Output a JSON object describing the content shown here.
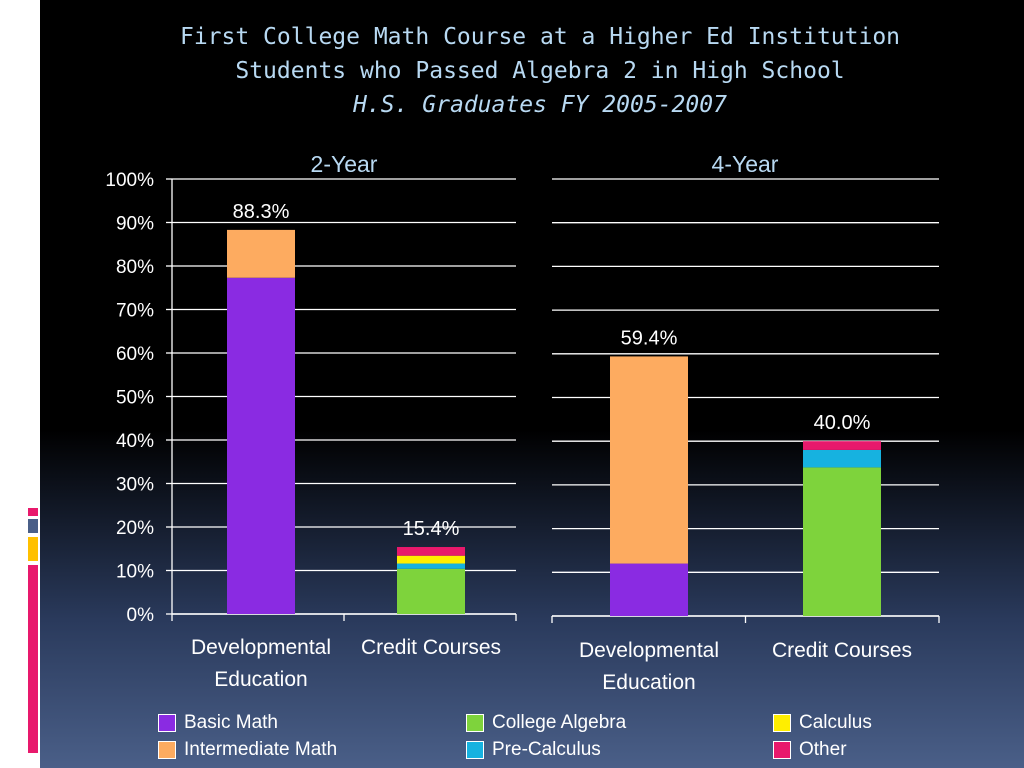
{
  "title": {
    "line1": "First College Math Course at a Higher Ed Institution",
    "line2": "Students who Passed Algebra 2 in High School",
    "line3": "H.S. Graduates FY 2005-2007"
  },
  "colors": {
    "basic_math": "#8a2be2",
    "intermediate_math": "#fdab60",
    "college_algebra": "#7ed33c",
    "pre_calculus": "#16b2e0",
    "calculus": "#ffee00",
    "other": "#e8196c"
  },
  "legend": [
    {
      "label": "Basic Math",
      "color_key": "basic_math"
    },
    {
      "label": "Intermediate Math",
      "color_key": "intermediate_math"
    },
    {
      "label": "College Algebra",
      "color_key": "college_algebra"
    },
    {
      "label": "Pre-Calculus",
      "color_key": "pre_calculus"
    },
    {
      "label": "Calculus",
      "color_key": "calculus"
    },
    {
      "label": "Other",
      "color_key": "other"
    }
  ],
  "chart_data": [
    {
      "type": "bar",
      "stacked": true,
      "title": "2-Year",
      "categories": [
        [
          "Developmental",
          "Education"
        ],
        [
          "Credit Courses"
        ]
      ],
      "ylim": [
        0,
        100
      ],
      "yticks": [
        "0%",
        "10%",
        "20%",
        "30%",
        "40%",
        "50%",
        "60%",
        "70%",
        "80%",
        "90%",
        "100%"
      ],
      "grid": true,
      "series": [
        {
          "name": "Basic Math",
          "color_key": "basic_math",
          "values": [
            77.3,
            0
          ]
        },
        {
          "name": "Intermediate Math",
          "color_key": "intermediate_math",
          "values": [
            11.0,
            0
          ]
        },
        {
          "name": "College Algebra",
          "color_key": "college_algebra",
          "values": [
            0,
            10.4
          ]
        },
        {
          "name": "Pre-Calculus",
          "color_key": "pre_calculus",
          "values": [
            0,
            1.2
          ]
        },
        {
          "name": "Calculus",
          "color_key": "calculus",
          "values": [
            0,
            1.8
          ]
        },
        {
          "name": "Other",
          "color_key": "other",
          "values": [
            0,
            2.0
          ]
        }
      ],
      "totals": [
        "88.3%",
        "15.4%"
      ]
    },
    {
      "type": "bar",
      "stacked": true,
      "title": "4-Year",
      "categories": [
        [
          "Developmental",
          "Education"
        ],
        [
          "Credit Courses"
        ]
      ],
      "ylim": [
        0,
        100
      ],
      "grid": true,
      "series": [
        {
          "name": "Basic Math",
          "color_key": "basic_math",
          "values": [
            12.0,
            0
          ]
        },
        {
          "name": "Intermediate Math",
          "color_key": "intermediate_math",
          "values": [
            47.4,
            0
          ]
        },
        {
          "name": "College Algebra",
          "color_key": "college_algebra",
          "values": [
            0,
            34.0
          ]
        },
        {
          "name": "Pre-Calculus",
          "color_key": "pre_calculus",
          "values": [
            0,
            4.0
          ]
        },
        {
          "name": "Calculus",
          "color_key": "calculus",
          "values": [
            0,
            0
          ]
        },
        {
          "name": "Other",
          "color_key": "other",
          "values": [
            0,
            2.0
          ]
        }
      ],
      "totals": [
        "59.4%",
        "40.0%"
      ]
    }
  ]
}
